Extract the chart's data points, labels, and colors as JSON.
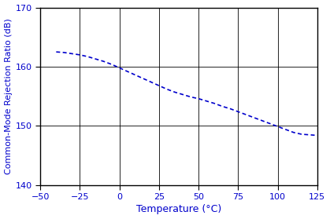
{
  "x_data": [
    -40,
    -35,
    -30,
    -25,
    -20,
    -15,
    -10,
    -5,
    0,
    5,
    10,
    15,
    20,
    25,
    30,
    35,
    40,
    45,
    50,
    55,
    60,
    65,
    70,
    75,
    80,
    85,
    90,
    95,
    100,
    105,
    110,
    115,
    120,
    125
  ],
  "y_data": [
    162.5,
    162.4,
    162.2,
    162.0,
    161.7,
    161.3,
    160.9,
    160.4,
    159.8,
    159.2,
    158.6,
    158.0,
    157.4,
    156.8,
    156.2,
    155.7,
    155.3,
    154.9,
    154.6,
    154.2,
    153.8,
    153.3,
    152.9,
    152.4,
    151.9,
    151.4,
    150.9,
    150.4,
    149.9,
    149.4,
    148.9,
    148.6,
    148.5,
    148.4
  ],
  "line_color": "#0000CC",
  "line_width": 1.2,
  "xlabel": "Temperature (°C)",
  "ylabel": "Common-Mode Rejection Ratio (dB)",
  "xlim": [
    -50,
    125
  ],
  "ylim": [
    140,
    170
  ],
  "xticks": [
    -50,
    -25,
    0,
    25,
    50,
    75,
    100,
    125
  ],
  "yticks": [
    140,
    150,
    160,
    170
  ],
  "grid_color": "#000000",
  "grid_alpha": 1.0,
  "grid_linewidth": 0.6,
  "tick_label_color": "#0000CC",
  "axis_label_color": "#0000CC",
  "xlabel_fontsize": 9,
  "ylabel_fontsize": 8,
  "tick_fontsize": 8,
  "spine_color": "#000000",
  "spine_linewidth": 1.0,
  "dash_pattern": [
    3,
    2
  ]
}
